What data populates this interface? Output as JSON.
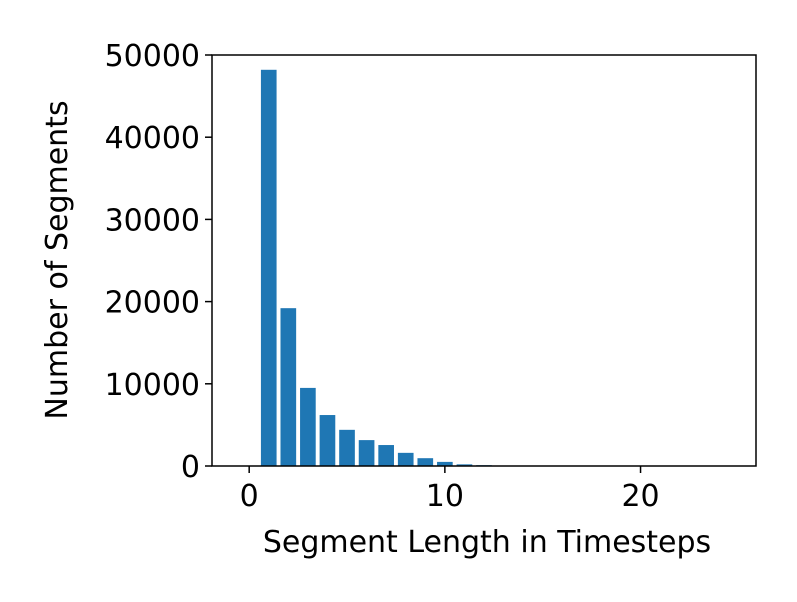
{
  "chart_data": {
    "type": "bar",
    "xlabel": "Segment Length in Timesteps",
    "ylabel": "Number of Segments",
    "x": [
      1,
      2,
      3,
      4,
      5,
      6,
      7,
      8,
      9,
      10,
      11,
      12,
      13,
      14,
      15,
      16,
      17,
      18,
      19,
      20,
      21,
      22,
      23,
      24
    ],
    "values": [
      48200,
      19200,
      9500,
      6200,
      4400,
      3150,
      2550,
      1600,
      950,
      500,
      200,
      100,
      50,
      30,
      20,
      15,
      10,
      8,
      5,
      4,
      3,
      2,
      2,
      1
    ],
    "color": "#1f77b4",
    "xlim": [
      -1.9,
      25.9
    ],
    "xticks": [
      0,
      10,
      20
    ],
    "ylim": [
      0,
      50000
    ],
    "yticks": [
      0,
      10000,
      20000,
      30000,
      40000,
      50000
    ]
  }
}
